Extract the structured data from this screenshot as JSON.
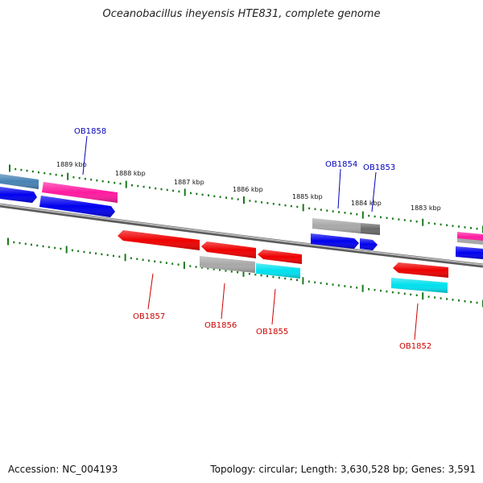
{
  "title": "Oceanobacillus iheyensis HTE831, complete genome",
  "footer": {
    "accession": "Accession: NC_004193",
    "summary": "Topology: circular; Length: 3,630,528 bp; Genes: 3,591"
  },
  "colors": {
    "backbone": "#808080",
    "tick": "#1a7a1a",
    "label_forward": "#0000bb",
    "label_reverse": "#cc0000",
    "blue": "#0000ee",
    "red": "#ee0000",
    "magenta": "#ff1aa0",
    "steel": "#4682b4",
    "gray": "#a8a8a8",
    "darkgray": "#6a6a6a",
    "cyan": "#00e0ee"
  },
  "scale_labels": [
    {
      "text": "1889 kbp",
      "pos": 1889
    },
    {
      "text": "1888 kbp",
      "pos": 1888
    },
    {
      "text": "1887 kbp",
      "pos": 1887
    },
    {
      "text": "1886 kbp",
      "pos": 1886
    },
    {
      "text": "1885 kbp",
      "pos": 1885
    },
    {
      "text": "1884 kbp",
      "pos": 1884
    },
    {
      "text": "1883 kbp",
      "pos": 1883
    }
  ],
  "genes": [
    {
      "id": "OB1858",
      "strand": "forward",
      "labeled": true
    },
    {
      "id": "OB1857",
      "strand": "reverse",
      "labeled": true
    },
    {
      "id": "OB1856",
      "strand": "reverse",
      "labeled": true
    },
    {
      "id": "OB1855",
      "strand": "reverse",
      "labeled": true
    },
    {
      "id": "OB1854",
      "strand": "forward",
      "labeled": true
    },
    {
      "id": "OB1853",
      "strand": "forward",
      "labeled": true
    },
    {
      "id": "OB1852",
      "strand": "reverse",
      "labeled": true
    }
  ]
}
